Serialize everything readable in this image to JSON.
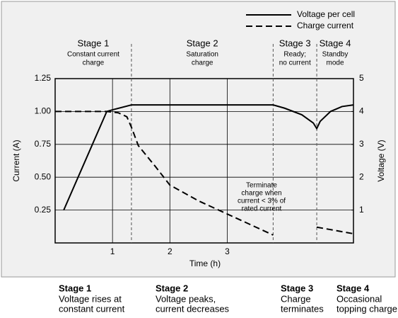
{
  "chart_data": {
    "type": "line",
    "xlabel": "Time (h)",
    "ylabel": "Current (A)",
    "y2label": "Voltage (V)",
    "xlim": [
      0,
      5.2
    ],
    "xticks": [
      1,
      2,
      3
    ],
    "ylim": [
      0,
      1.25
    ],
    "yticks": [
      {
        "value": 0.25,
        "label": "0.25"
      },
      {
        "value": 0.5,
        "label": "0.50"
      },
      {
        "value": 0.75,
        "label": "0.75"
      },
      {
        "value": 1.0,
        "label": "1.00"
      },
      {
        "value": 1.25,
        "label": "1.25"
      }
    ],
    "y2lim": [
      0,
      5
    ],
    "y2ticks": [
      1,
      2,
      3,
      4,
      5
    ],
    "grid": true,
    "legend": "top-right",
    "series": [
      {
        "name": "Voltage per cell",
        "color": "#000000",
        "line_style": "solid",
        "axis": "y2",
        "x": [
          0.15,
          0.9,
          1.0,
          1.33,
          3.8,
          4.0,
          4.3,
          4.5,
          4.56,
          4.62,
          4.8,
          5.0,
          5.2
        ],
        "values": [
          1.0,
          4.0,
          4.05,
          4.2,
          4.2,
          4.1,
          3.9,
          3.65,
          3.48,
          3.7,
          4.0,
          4.15,
          4.2
        ]
      },
      {
        "name": "Charge current",
        "color": "#000000",
        "line_style": "dashed",
        "axis": "y",
        "x": [
          0,
          0.5,
          0.9,
          1.1,
          1.25,
          1.33,
          1.45,
          1.75,
          2.0,
          2.5,
          3.0,
          3.5,
          3.8,
          3.81,
          4.56,
          5.2
        ],
        "values": [
          1.0,
          1.0,
          1.0,
          0.99,
          0.96,
          0.88,
          0.74,
          0.58,
          0.44,
          0.32,
          0.22,
          0.12,
          0.06,
          null,
          0.12,
          0.07
        ]
      }
    ],
    "stage_boundaries": [
      1.33,
      3.8,
      4.56
    ],
    "stages": [
      {
        "title": "Stage 1",
        "lines": [
          "Constant current",
          "charge"
        ]
      },
      {
        "title": "Stage 2",
        "lines": [
          "Saturation",
          "charge"
        ]
      },
      {
        "title": "Stage 3",
        "lines": [
          "Ready;",
          "no current"
        ]
      },
      {
        "title": "Stage 4",
        "lines": [
          "Standby",
          "mode"
        ]
      }
    ],
    "annotation": [
      "Terminate",
      "charge when",
      "current < 3% of",
      "rated current"
    ],
    "captions": [
      {
        "title": "Stage 1",
        "lines": [
          "Voltage rises at",
          "constant current"
        ]
      },
      {
        "title": "Stage 2",
        "lines": [
          "Voltage peaks,",
          "current decreases"
        ]
      },
      {
        "title": "Stage 3",
        "lines": [
          "Charge",
          "terminates"
        ]
      },
      {
        "title": "Stage 4",
        "lines": [
          "Occasional",
          "topping charge"
        ]
      }
    ]
  }
}
